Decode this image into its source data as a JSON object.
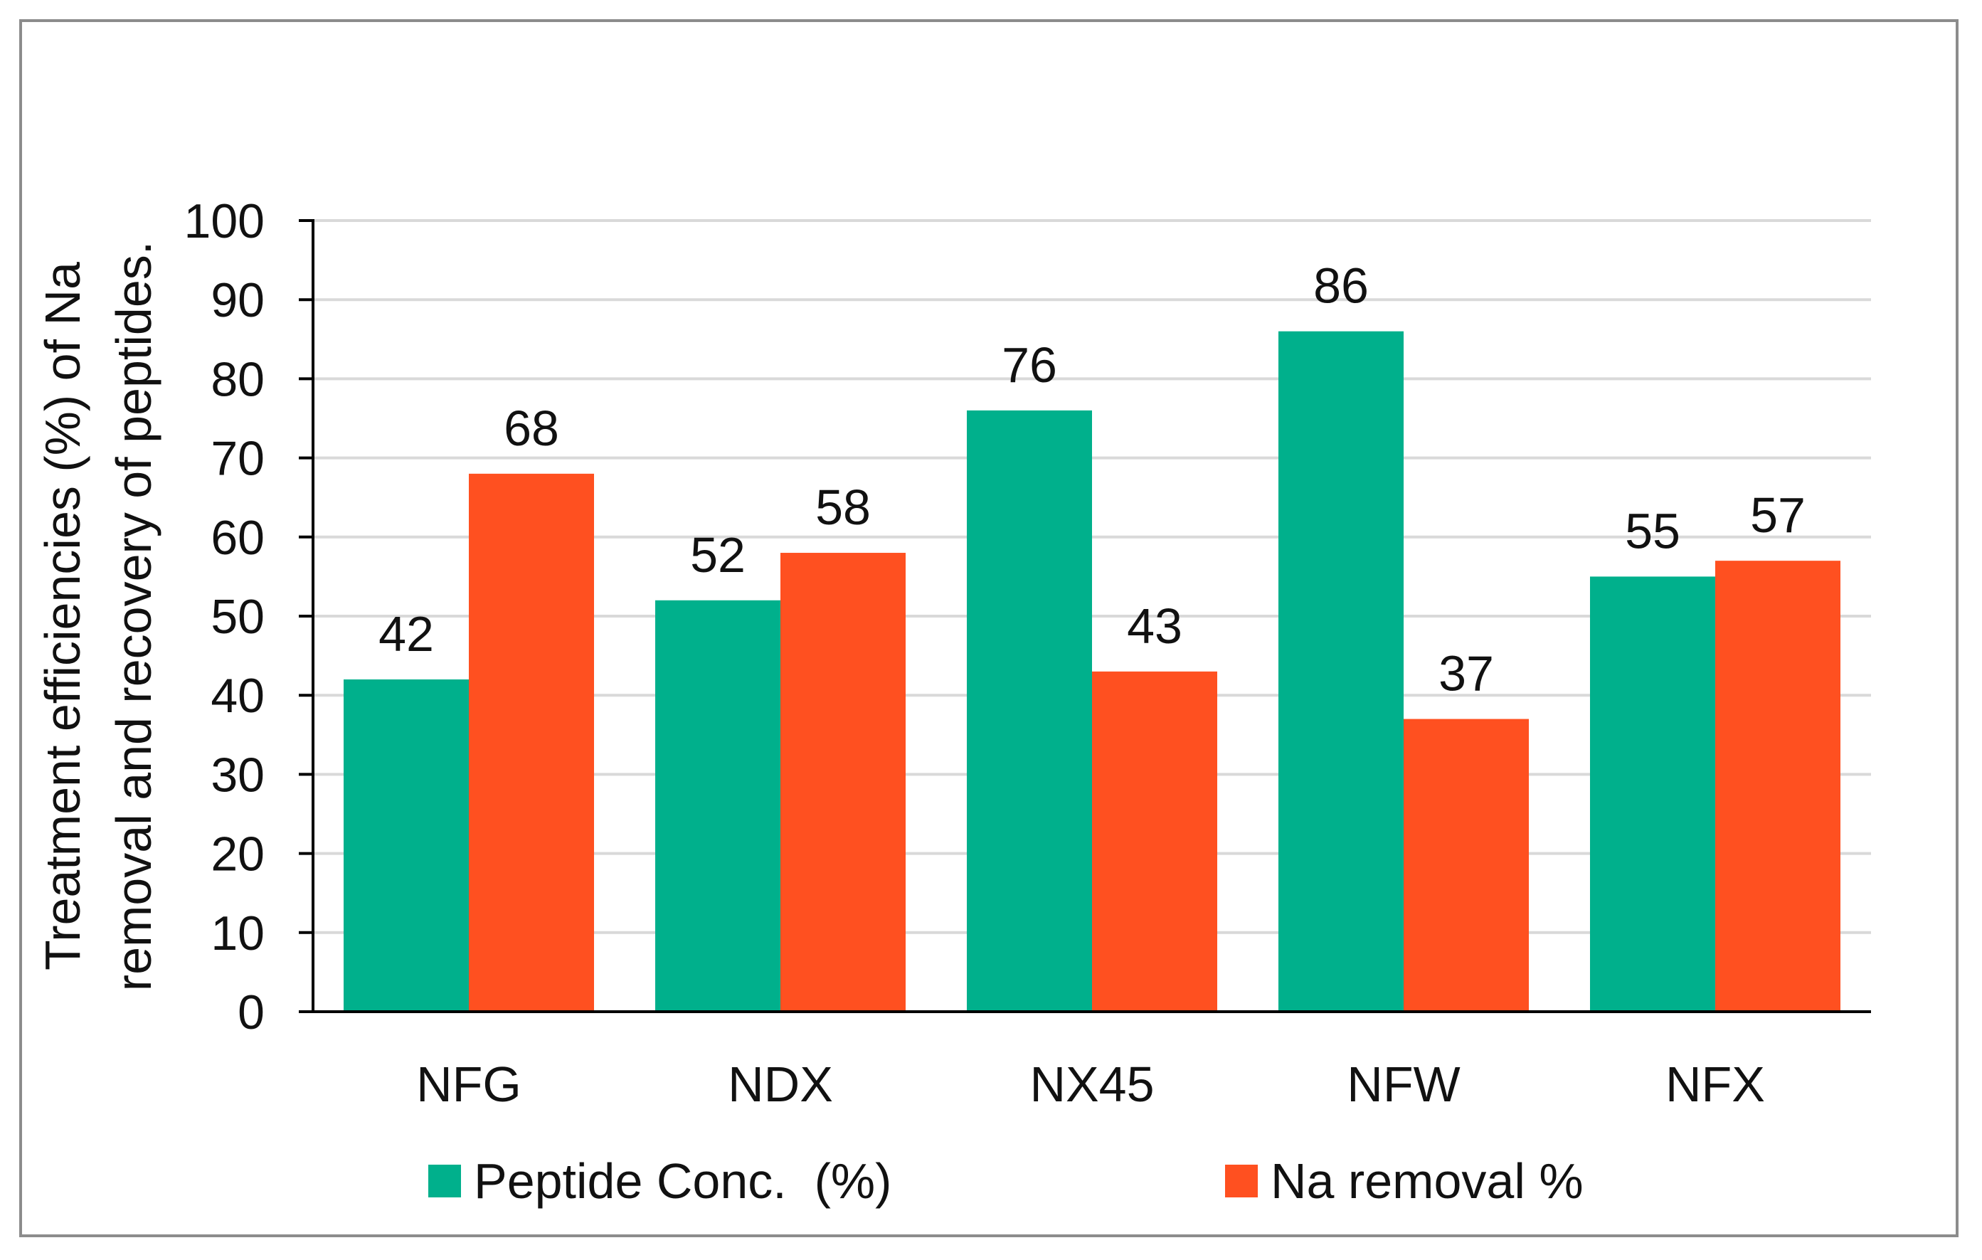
{
  "chart_data": {
    "type": "bar",
    "title": "",
    "xlabel": "",
    "ylabel_lines": [
      "Treatment efficiencies (%) of  Na",
      "removal and  recovery of peptides."
    ],
    "categories": [
      "NFG",
      "NDX",
      "NX45",
      "NFW",
      "NFX"
    ],
    "series": [
      {
        "name": "Peptide Conc.  (%)",
        "color": "#00b08c",
        "values": [
          42,
          52,
          76,
          86,
          55
        ],
        "labels": [
          "42",
          "52",
          "76",
          "86",
          "55"
        ]
      },
      {
        "name": "Na removal %",
        "color": "#ff5020",
        "values": [
          68,
          58,
          43,
          37,
          57
        ],
        "labels": [
          "68",
          "58",
          "43",
          "37",
          "57"
        ]
      }
    ],
    "ylim": [
      0,
      100
    ],
    "yticks": [
      0,
      10,
      20,
      30,
      40,
      50,
      60,
      70,
      80,
      90,
      100
    ],
    "grid": true,
    "legend_position": "bottom"
  }
}
